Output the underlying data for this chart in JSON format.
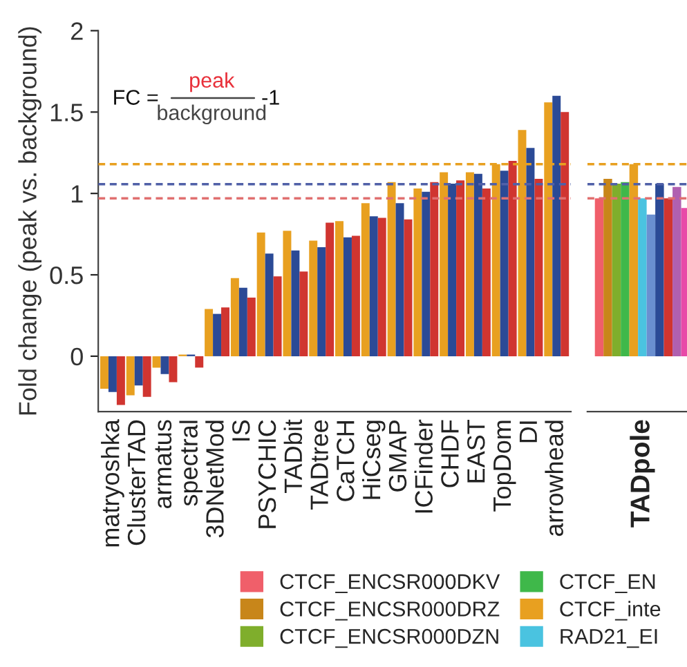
{
  "chart_data": [
    {
      "type": "bar",
      "ylabel": "Fold change (peak vs. background)",
      "categories": [
        "matryoshka",
        "ClusterTAD",
        "armatus",
        "spectral",
        "3DNetMod",
        "IS",
        "PSYCHIC",
        "TADbit",
        "TADtree",
        "CaTCH",
        "HiCseg",
        "GMAP",
        "ICFinder",
        "CHDF",
        "EAST",
        "TopDom",
        "DI",
        "arrowhead"
      ],
      "series": [
        {
          "color": "#e8a020",
          "values": [
            -0.2,
            -0.24,
            -0.07,
            0.01,
            0.29,
            0.48,
            0.76,
            0.77,
            0.71,
            0.83,
            0.94,
            1.07,
            1.03,
            1.13,
            1.13,
            1.18,
            1.39,
            1.56
          ]
        },
        {
          "color": "#2b4a96",
          "values": [
            -0.22,
            -0.18,
            -0.11,
            0.01,
            0.26,
            0.42,
            0.63,
            0.65,
            0.67,
            0.73,
            0.86,
            0.94,
            1.01,
            1.06,
            1.12,
            1.14,
            1.28,
            1.6
          ]
        },
        {
          "color": "#d03530",
          "values": [
            -0.3,
            -0.25,
            -0.16,
            -0.07,
            0.3,
            0.36,
            0.49,
            0.52,
            0.82,
            0.74,
            0.85,
            0.84,
            1.07,
            1.08,
            1.03,
            1.2,
            1.09,
            1.5
          ]
        }
      ],
      "ylim": [
        -0.34,
        2
      ],
      "yticks": [
        0,
        0.5,
        1,
        1.5,
        2
      ],
      "ref_lines": [
        {
          "axis": "y",
          "value": 1.18,
          "color": "#e8a020",
          "line_style": "dashed"
        },
        {
          "axis": "y",
          "value": 1.057,
          "color": "#5060a8",
          "line_style": "dashed"
        },
        {
          "axis": "y",
          "value": 0.97,
          "color": "#e07070",
          "line_style": "dashed"
        }
      ],
      "annotations": [
        "FC =",
        "peak",
        "background",
        "-1"
      ]
    },
    {
      "type": "bar",
      "categories": [
        "TADpole"
      ],
      "tick_labels": "x",
      "ylim": [
        -0.34,
        2
      ],
      "legend": "bottom",
      "series": [
        {
          "name": "CTCF_ENCSR000DKV",
          "color": "#f05f6a",
          "values": [
            0.97
          ]
        },
        {
          "name": "CTCF_ENCSR000DRZ",
          "color": "#c8861a",
          "values": [
            1.09
          ]
        },
        {
          "name": "CTCF_ENCSR000DZN",
          "color": "#7fae2c",
          "values": [
            1.06
          ]
        },
        {
          "name": "CTCF_EN",
          "color": "#3fb84a",
          "values": [
            1.07
          ]
        },
        {
          "name": "CTCF_inte",
          "color": "#e8a020",
          "values": [
            1.18
          ]
        },
        {
          "name": "RAD21_EI",
          "color": "#4ac3e0",
          "values": [
            0.97
          ]
        },
        {
          "color": "#6a8fd0",
          "values": [
            0.87
          ]
        },
        {
          "color": "#2b4a96",
          "values": [
            1.06
          ]
        },
        {
          "color": "#d03530",
          "values": [
            0.97
          ]
        },
        {
          "color": "#b060b0",
          "values": [
            1.04
          ]
        },
        {
          "color": "#e84aa8",
          "values": [
            0.91
          ]
        }
      ],
      "ref_lines": [
        {
          "axis": "y",
          "value": 1.18,
          "color": "#e8a020",
          "line_style": "dashed"
        },
        {
          "axis": "y",
          "value": 1.057,
          "color": "#5060a8",
          "line_style": "dashed"
        },
        {
          "axis": "y",
          "value": 0.97,
          "color": "#e07070",
          "line_style": "dashed"
        }
      ]
    }
  ]
}
